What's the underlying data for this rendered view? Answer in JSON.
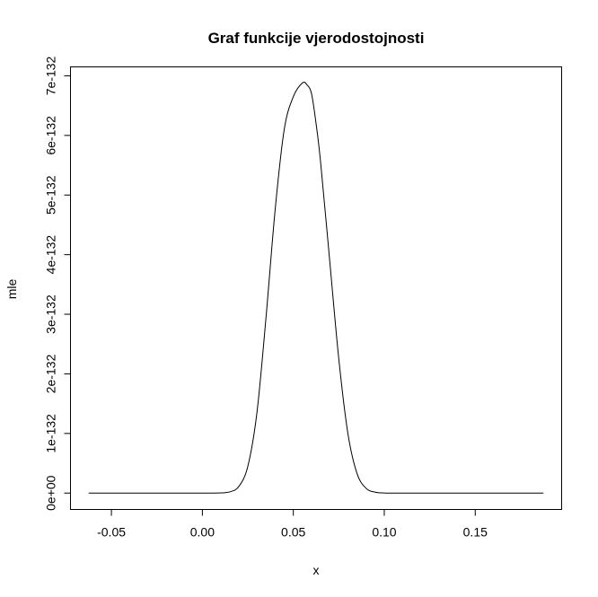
{
  "chart_data": {
    "type": "line",
    "title": "Graf funkcije vjerodostojnosti",
    "xlabel": "x",
    "ylabel": "mle",
    "xlim": [
      -0.0725,
      0.1975
    ],
    "ylim": [
      -2.75e-133,
      7.15e-132
    ],
    "x_ticks": [
      -0.05,
      0.0,
      0.05,
      0.1,
      0.15
    ],
    "x_tick_labels": [
      "-0.05",
      "0.00",
      "0.05",
      "0.10",
      "0.15"
    ],
    "y_ticks": [
      0,
      1e-132,
      2e-132,
      3e-132,
      4e-132,
      5e-132,
      6e-132,
      7e-132
    ],
    "y_tick_labels": [
      "0e+00",
      "1e-132",
      "2e-132",
      "3e-132",
      "4e-132",
      "5e-132",
      "6e-132",
      "7e-132"
    ],
    "grid": false,
    "series": [
      {
        "x": [
          -0.0625,
          0.0,
          0.01,
          0.015,
          0.02,
          0.025,
          0.03,
          0.035,
          0.04,
          0.045,
          0.05,
          0.055,
          0.0575,
          0.06,
          0.0625,
          0.065,
          0.07,
          0.075,
          0.08,
          0.085,
          0.09,
          0.095,
          0.1,
          0.11,
          0.1875
        ],
        "y": [
          0,
          0,
          3e-135,
          2e-134,
          1.1e-133,
          4.5e-133,
          1.35e-132,
          2.95e-132,
          4.75e-132,
          6.1e-132,
          6.65e-132,
          6.88e-132,
          6.85e-132,
          6.7e-132,
          6.2e-132,
          5.55e-132,
          3.9e-132,
          2.25e-132,
          1e-132,
          3.3e-133,
          8e-134,
          1.5e-134,
          2e-135,
          0,
          0
        ]
      }
    ]
  }
}
